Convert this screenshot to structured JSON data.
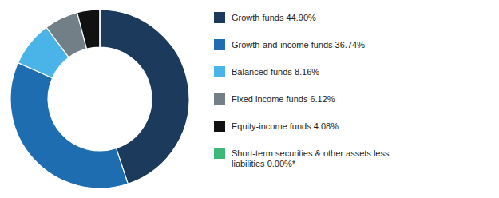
{
  "chart_data": {
    "type": "pie",
    "categories": [
      "Growth funds 44.90%",
      "Growth-and-income funds 36.74%",
      "Balanced funds 8.16%",
      "Fixed income funds 6.12%",
      "Equity-income funds 4.08%",
      "Short-term securities & other assets less\nliabilities 0.00%*"
    ],
    "values": [
      44.9,
      36.74,
      8.16,
      6.12,
      4.08,
      0.0001
    ],
    "colors": [
      "#1b3a5c",
      "#1e6db0",
      "#4ab4e8",
      "#737f87",
      "#111111",
      "#3cb87a"
    ],
    "legend": "right"
  }
}
